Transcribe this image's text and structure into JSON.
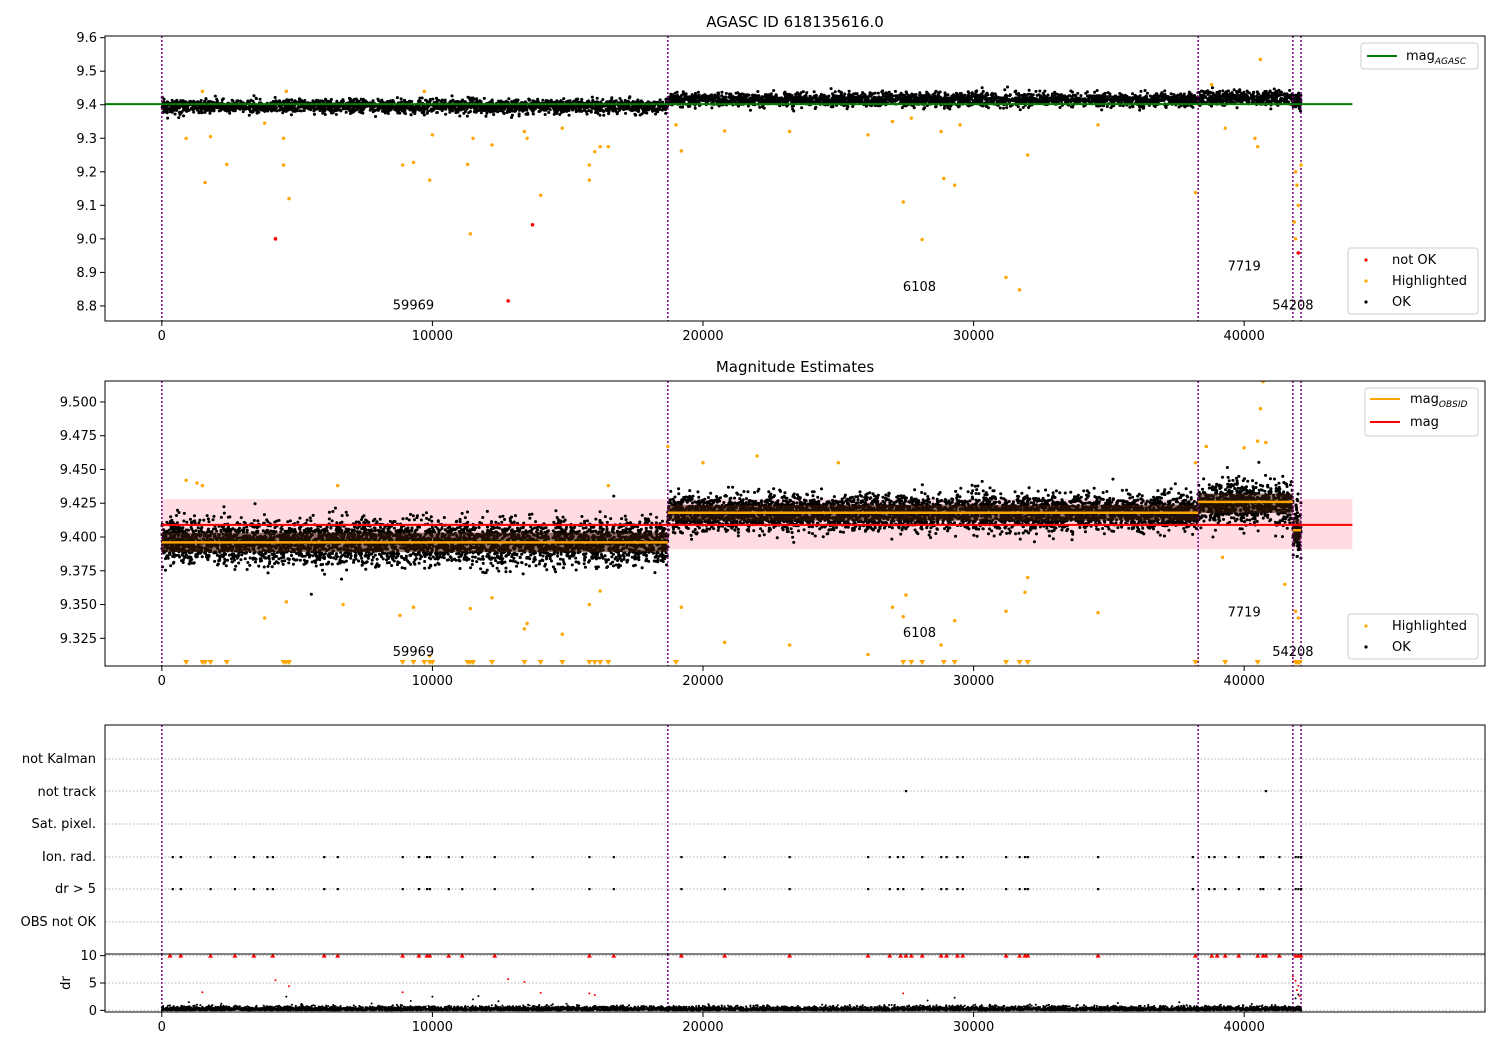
{
  "chart_data": [
    {
      "type": "scatter",
      "title": "AGASC ID 618135616.0",
      "xlabel": "",
      "ylabel": "",
      "xlim": [
        -2100,
        48900
      ],
      "ylim": [
        8.755,
        9.605
      ],
      "x_ticks": [
        0,
        10000,
        20000,
        30000,
        40000
      ],
      "y_ticks": [
        8.8,
        8.9,
        9.0,
        9.1,
        9.2,
        9.3,
        9.4,
        9.5,
        9.6
      ],
      "grid": false,
      "obs_boundaries": [
        0,
        18700,
        38300,
        41800,
        42100
      ],
      "obs_labels": [
        {
          "text": "59969",
          "x": 9300,
          "y": 8.79
        },
        {
          "text": "6108",
          "x": 28000,
          "y": 8.845
        },
        {
          "text": "7719",
          "x": 40000,
          "y": 8.905
        },
        {
          "text": "54208",
          "x": 41800,
          "y": 8.79
        }
      ],
      "lines": [
        {
          "name": "mag$_{AGASC}$",
          "legend_label": "mag",
          "legend_sub": "AGASC",
          "color": "#008000",
          "x": [
            -2100,
            44000
          ],
          "y": [
            9.402,
            9.402
          ]
        }
      ],
      "ok_segments": [
        {
          "x0": 0,
          "x1": 18700,
          "center": 9.395,
          "spread": 0.02
        },
        {
          "x0": 18700,
          "x1": 38300,
          "center": 9.415,
          "spread": 0.02
        },
        {
          "x0": 38300,
          "x1": 41800,
          "center": 9.42,
          "spread": 0.022
        },
        {
          "x0": 41800,
          "x1": 42100,
          "center": 9.41,
          "spread": 0.02
        }
      ],
      "series": [
        {
          "name": "not OK",
          "color": "#ff0000",
          "x": [
            4200,
            12800,
            13700,
            42000
          ],
          "y": [
            9.0,
            8.815,
            9.042,
            8.958
          ]
        },
        {
          "name": "Highlighted",
          "color": "#ffa500",
          "x": [
            900,
            1500,
            1600,
            1800,
            2400,
            3800,
            4500,
            4500,
            4600,
            4700,
            8900,
            9300,
            9700,
            9900,
            10000,
            11300,
            11400,
            11500,
            12200,
            13400,
            13500,
            14000,
            14800,
            15800,
            15800,
            16000,
            16200,
            16500,
            19000,
            19200,
            20800,
            23200,
            26100,
            27000,
            27400,
            27700,
            28100,
            28800,
            28900,
            29300,
            29500,
            31200,
            31700,
            32000,
            34600,
            38200,
            38800,
            39300,
            40400,
            40500,
            40600,
            41900,
            41950,
            42000,
            42100,
            41850,
            41900
          ],
          "y": [
            9.3,
            9.44,
            9.168,
            9.305,
            9.222,
            9.345,
            9.22,
            9.3,
            9.44,
            9.12,
            9.22,
            9.228,
            9.44,
            9.175,
            9.31,
            9.222,
            9.015,
            9.3,
            9.28,
            9.32,
            9.3,
            9.13,
            9.33,
            9.175,
            9.22,
            9.26,
            9.275,
            9.275,
            9.34,
            9.262,
            9.322,
            9.32,
            9.31,
            9.35,
            9.11,
            9.36,
            8.998,
            9.32,
            9.18,
            9.16,
            9.34,
            8.885,
            8.848,
            9.25,
            9.34,
            9.138,
            9.46,
            9.33,
            9.3,
            9.275,
            9.535,
            9.2,
            9.16,
            9.1,
            9.22,
            9.05,
            9.0
          ]
        },
        {
          "name": "OK",
          "color": "#000000",
          "x": [],
          "y": []
        }
      ],
      "legends": [
        {
          "position": "upper-right",
          "entries": [
            "mag$_{AGASC}$"
          ]
        },
        {
          "position": "lower-right",
          "entries": [
            "not OK",
            "Highlighted",
            "OK"
          ]
        }
      ]
    },
    {
      "type": "scatter",
      "title": "Magnitude Estimates",
      "xlabel": "",
      "ylabel": "",
      "xlim": [
        -2100,
        48900
      ],
      "ylim": [
        9.3045,
        9.5155
      ],
      "x_ticks": [
        0,
        10000,
        20000,
        30000,
        40000
      ],
      "y_ticks": [
        9.325,
        9.35,
        9.375,
        9.4,
        9.425,
        9.45,
        9.475,
        9.5
      ],
      "grid": false,
      "obs_boundaries": [
        0,
        18700,
        38300,
        41800,
        42100
      ],
      "obs_labels": [
        {
          "text": "59969",
          "x": 9300,
          "y": 9.312
        },
        {
          "text": "6108",
          "x": 28000,
          "y": 9.326
        },
        {
          "text": "7719",
          "x": 40000,
          "y": 9.341
        },
        {
          "text": "54208",
          "x": 41800,
          "y": 9.312
        }
      ],
      "band": {
        "color": "#ffc0c8",
        "x0": 0,
        "x1": 44000,
        "y0": 9.391,
        "y1": 9.428
      },
      "lines": [
        {
          "name": "mag$_{OBSID}$",
          "legend_label": "mag",
          "legend_sub": "OBSID",
          "color": "#ffa500",
          "segments": [
            [
              0,
              18700,
              9.396
            ],
            [
              18700,
              38300,
              9.418
            ],
            [
              38300,
              41800,
              9.426
            ],
            [
              41800,
              42100,
              9.405
            ]
          ]
        },
        {
          "name": "mag",
          "color": "#ff0000",
          "x": [
            0,
            44000
          ],
          "y": [
            9.409,
            9.409
          ]
        }
      ],
      "ok_segments": [
        {
          "x0": 0,
          "x1": 18700,
          "center": 9.396,
          "spread": 0.016
        },
        {
          "x0": 18700,
          "x1": 38300,
          "center": 9.418,
          "spread": 0.013
        },
        {
          "x0": 38300,
          "x1": 41800,
          "center": 9.425,
          "spread": 0.016
        },
        {
          "x0": 41800,
          "x1": 42100,
          "center": 9.405,
          "spread": 0.018
        }
      ],
      "series": [
        {
          "name": "Highlighted",
          "color": "#ffa500",
          "x": [
            900,
            1300,
            1500,
            3800,
            4600,
            6500,
            6700,
            8800,
            9300,
            9900,
            11400,
            12200,
            13400,
            13500,
            14800,
            15800,
            16200,
            16500,
            18700,
            19200,
            20000,
            20800,
            22000,
            23200,
            25000,
            26100,
            27000,
            27400,
            27500,
            28800,
            29300,
            31200,
            31900,
            32000,
            34600,
            38200,
            38600,
            39200,
            40000,
            40500,
            40600,
            40700,
            40800,
            41500,
            41900,
            42000
          ],
          "y": [
            9.442,
            9.44,
            9.438,
            9.34,
            9.352,
            9.438,
            9.35,
            9.342,
            9.348,
            9.312,
            9.347,
            9.355,
            9.332,
            9.336,
            9.328,
            9.35,
            9.36,
            9.438,
            9.467,
            9.348,
            9.455,
            9.322,
            9.46,
            9.32,
            9.455,
            9.313,
            9.348,
            9.341,
            9.357,
            9.32,
            9.338,
            9.345,
            9.359,
            9.37,
            9.344,
            9.455,
            9.467,
            9.385,
            9.466,
            9.471,
            9.495,
            9.515,
            9.47,
            9.365,
            9.345,
            9.34
          ]
        },
        {
          "name": "Highlighted (below axis)",
          "color": "#ffa500",
          "x": [
            900,
            1500,
            1600,
            1800,
            2400,
            4500,
            4600,
            4700,
            8900,
            9300,
            9700,
            9900,
            10000,
            11300,
            11400,
            11500,
            12200,
            13400,
            14000,
            14800,
            15800,
            16000,
            16200,
            16500,
            19000,
            27400,
            27700,
            28100,
            28900,
            29300,
            31200,
            31700,
            32000,
            38200,
            39300,
            40500,
            41900,
            41950,
            42000,
            42050
          ],
          "y": "below-axis"
        },
        {
          "name": "OK",
          "color": "#000000",
          "x": [],
          "y": []
        }
      ],
      "legends": [
        {
          "position": "upper-right",
          "entries": [
            "mag$_{OBSID}$",
            "mag"
          ]
        },
        {
          "position": "lower-right",
          "entries": [
            "Highlighted",
            "OK"
          ]
        }
      ]
    },
    {
      "type": "scatter",
      "title": "",
      "xlabel": "",
      "ylabel": "",
      "xlim": [
        -2100,
        48900
      ],
      "categories": [
        "OBS not OK",
        "dr > 5",
        "Ion. rad.",
        "Sat. pixel.",
        "not track",
        "not Kalman"
      ],
      "grid": "horizontal-dotted",
      "obs_boundaries": [
        0,
        18700,
        38300,
        41800,
        42100
      ],
      "series": [
        {
          "name": "dr > 5",
          "color": "#000000",
          "x": [
            400,
            700,
            1800,
            2700,
            3400,
            3900,
            4100,
            6000,
            6500,
            8900,
            9500,
            9800,
            9900,
            10600,
            11100,
            12300,
            13700,
            15800,
            16700,
            19200,
            20800,
            23200,
            26100,
            26900,
            27200,
            27400,
            28100,
            28800,
            29000,
            29400,
            29600,
            31200,
            31700,
            31900,
            32000,
            34600,
            38100,
            38700,
            38900,
            39300,
            39800,
            40600,
            40700,
            41300,
            41900,
            42000,
            42100
          ]
        },
        {
          "name": "Ion. rad.",
          "color": "#000000",
          "x": [
            400,
            700,
            1800,
            2700,
            3400,
            3900,
            4100,
            6000,
            6500,
            8900,
            9500,
            9800,
            9900,
            10600,
            11100,
            12300,
            13700,
            15800,
            16700,
            19200,
            20800,
            23200,
            26100,
            26900,
            27200,
            27400,
            28100,
            28800,
            29000,
            29400,
            29600,
            31200,
            31700,
            31900,
            32000,
            34600,
            38100,
            38700,
            38900,
            39300,
            39800,
            40600,
            40700,
            41300,
            41900,
            42000,
            42100
          ]
        },
        {
          "name": "not track",
          "color": "#000000",
          "x": [
            27500,
            40800
          ]
        }
      ]
    },
    {
      "type": "scatter",
      "title": "",
      "xlabel": "",
      "ylabel": "dr",
      "xlim": [
        -2100,
        48900
      ],
      "ylim": [
        -0.3,
        10.3
      ],
      "y_ticks": [
        0,
        5,
        10
      ],
      "grid": "horizontal-dotted",
      "obs_boundaries": [
        0,
        18700,
        38300,
        41800,
        42100
      ],
      "series": [
        {
          "name": "dr (saturated at 10)",
          "color": "#ff0000",
          "marker": "triangle",
          "y": 10,
          "x": [
            300,
            700,
            1800,
            2700,
            3400,
            4100,
            6000,
            6500,
            8900,
            9500,
            9800,
            9900,
            10600,
            11100,
            12300,
            15800,
            16700,
            19200,
            20800,
            23200,
            26100,
            26900,
            27300,
            27500,
            27700,
            28100,
            28800,
            29000,
            29400,
            29600,
            31200,
            31700,
            31900,
            32000,
            34600,
            38200,
            38800,
            39000,
            39300,
            39800,
            40500,
            40700,
            40800,
            41300,
            41900,
            42000,
            42100
          ]
        },
        {
          "name": "dr (red)",
          "color": "#ff0000",
          "x": [
            1500,
            4200,
            4700,
            8900,
            12800,
            13400,
            14000,
            15800,
            16000,
            27400,
            41800,
            41900,
            42000,
            41950,
            42050
          ],
          "y": [
            3.3,
            5.5,
            4.4,
            3.3,
            5.7,
            5.2,
            3.2,
            3.1,
            2.8,
            3.1,
            6.2,
            5.4,
            4.5,
            3.7,
            2.6
          ]
        },
        {
          "name": "dr",
          "color": "#000000",
          "x": [
            1000,
            2200,
            4600,
            9200,
            10000,
            11500,
            11700,
            28300,
            29300,
            41900,
            42000
          ],
          "y": [
            1.5,
            1.2,
            2.5,
            1.7,
            2.5,
            2.0,
            2.6,
            1.8,
            2.3,
            2.2,
            2.9
          ]
        }
      ]
    }
  ],
  "panels": {
    "top": {
      "title": "AGASC ID 618135616.0",
      "legend_line_label": "mag",
      "legend_line_sub": "AGASC",
      "legend_points": [
        "not OK",
        "Highlighted",
        "OK"
      ],
      "obs_labels": [
        "59969",
        "6108",
        "7719",
        "54208"
      ]
    },
    "middle": {
      "title": "Magnitude Estimates",
      "legend_lines": [
        {
          "label": "mag",
          "sub": "OBSID"
        },
        {
          "label": "mag",
          "sub": ""
        }
      ],
      "legend_points": [
        "Highlighted",
        "OK"
      ],
      "obs_labels": [
        "59969",
        "6108",
        "7719",
        "54208"
      ]
    },
    "flags": {
      "labels": [
        "not Kalman",
        "not track",
        "Sat. pixel.",
        "Ion. rad.",
        "dr > 5",
        "OBS not OK"
      ]
    },
    "dr": {
      "ylabel": "dr",
      "y_ticks": [
        "10",
        "5",
        "0"
      ]
    },
    "x_tick_labels": [
      "0",
      "10000",
      "20000",
      "30000",
      "40000"
    ]
  },
  "colors": {
    "ok": "#000000",
    "highlighted": "#ffa500",
    "not_ok": "#ff0000",
    "agasc_line": "#008000",
    "mag_line": "#ff0000",
    "obs_line": "#ffa500",
    "boundary": "#800080",
    "band": "#ffc0c8"
  }
}
